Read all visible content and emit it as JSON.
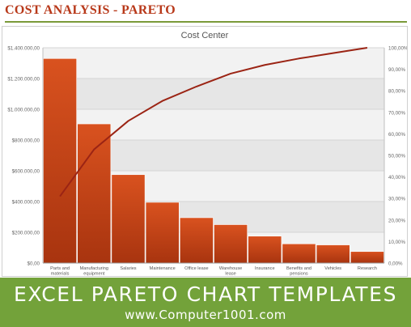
{
  "header": {
    "title": "COST ANALYSIS - PARETO"
  },
  "banner": {
    "heading": "EXCEL PARETO CHART TEMPLATES",
    "url": "www.Computer1001.com"
  },
  "colors": {
    "title": "#b8391a",
    "rule": "#7a9a3a",
    "bar_top": "#d9521f",
    "bar_bottom": "#a8340f",
    "line": "#9b2414",
    "banner": "#73a23a"
  },
  "chart_data": {
    "type": "bar",
    "title": "Cost Center",
    "categories": [
      [
        "Parts and",
        "materials"
      ],
      [
        "Manufacturing",
        "equipment"
      ],
      [
        "Salaries"
      ],
      [
        "Maintenance"
      ],
      [
        "Office lease"
      ],
      [
        "Warehouse",
        "lease"
      ],
      [
        "Insurance"
      ],
      [
        "Benefits and",
        "pensions"
      ],
      [
        "Vehicles"
      ],
      [
        "Research"
      ]
    ],
    "series": [
      {
        "values": [
          1330000,
          905000,
          575000,
          395000,
          295000,
          250000,
          175000,
          125000,
          118000,
          75000
        ]
      },
      {
        "type": "line",
        "axis": "y2",
        "values": [
          31,
          52.8,
          66,
          75.3,
          82,
          88,
          92,
          95,
          97.5,
          100
        ]
      }
    ],
    "y": {
      "ylim": [
        0,
        1400000
      ],
      "tick_labels": [
        "$0,00",
        "$200.000,00",
        "$400.000,00",
        "$600.000,00",
        "$800.000,00",
        "$1.000.000,00",
        "$1.200.000,00",
        "$1.400.000,00"
      ]
    },
    "y2": {
      "ylim": [
        0,
        100
      ],
      "tick_labels": [
        "0,00%",
        "10,00%",
        "20,00%",
        "30,00%",
        "40,00%",
        "50,00%",
        "60,00%",
        "70,00%",
        "80,00%",
        "90,00%",
        "100,00%"
      ]
    },
    "grid": true,
    "legend": "none"
  }
}
